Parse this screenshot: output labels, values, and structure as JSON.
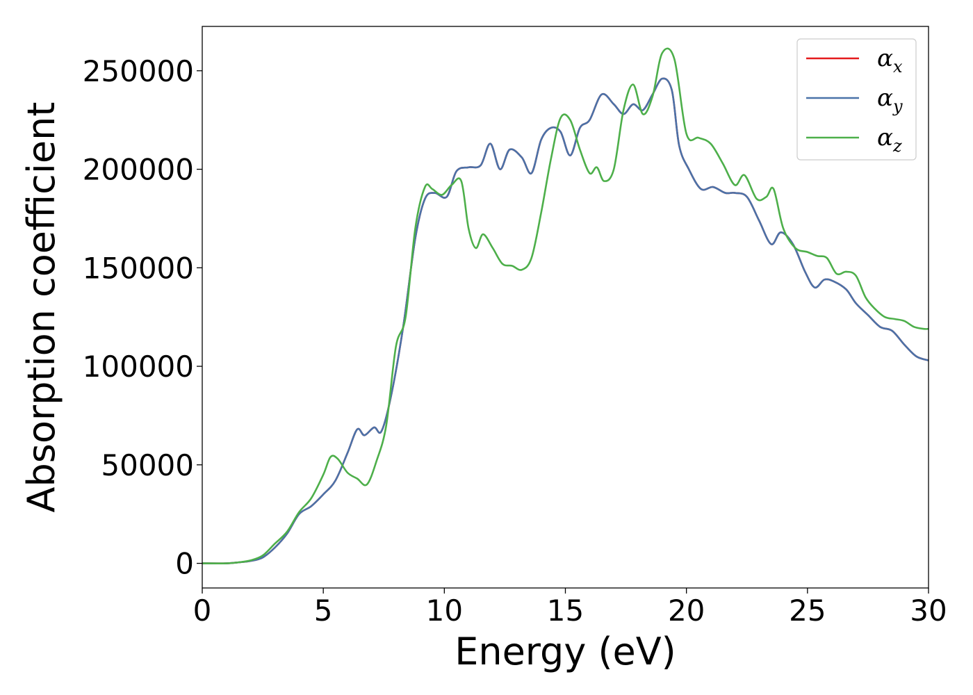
{
  "chart_data": {
    "type": "line",
    "xlabel": "Energy (eV)",
    "ylabel": "Absorption coefficient",
    "xlim": [
      0,
      30
    ],
    "ylim": [
      -12500,
      272500
    ],
    "xticks": [
      0,
      5,
      10,
      15,
      20,
      25,
      30
    ],
    "yticks": [
      0,
      50000,
      100000,
      150000,
      200000,
      250000
    ],
    "xtick_labels": [
      "0",
      "5",
      "10",
      "15",
      "20",
      "25",
      "30"
    ],
    "ytick_labels": [
      "0",
      "50000",
      "100000",
      "150000",
      "200000",
      "250000"
    ],
    "grid": false,
    "legend_position": "top-right",
    "series": [
      {
        "name": "αx",
        "symbol": "α",
        "subscript": "x",
        "color": "#e41a1c",
        "x": [
          0,
          1,
          1.5,
          2,
          2.5,
          3,
          3.5,
          4,
          4.5,
          5,
          5.5,
          6,
          6.4,
          6.7,
          7.1,
          7.4,
          7.8,
          8.3,
          8.8,
          9.2,
          9.6,
          10.1,
          10.5,
          11,
          11.5,
          11.9,
          12.3,
          12.7,
          13.2,
          13.6,
          14,
          14.4,
          14.8,
          15.2,
          15.6,
          16,
          16.5,
          17,
          17.4,
          17.8,
          18.2,
          18.6,
          19,
          19.4,
          19.7,
          20.1,
          20.6,
          21.1,
          21.6,
          22,
          22.5,
          23,
          23.5,
          23.9,
          24.4,
          24.9,
          25.3,
          25.7,
          26.1,
          26.6,
          27,
          27.5,
          28,
          28.5,
          29,
          29.5,
          30
        ],
        "y": [
          0,
          0,
          500,
          1200,
          3000,
          8000,
          15000,
          25000,
          29000,
          35000,
          42000,
          56000,
          68000,
          65000,
          69000,
          67000,
          85000,
          120000,
          165000,
          185000,
          188000,
          186000,
          199000,
          201000,
          202000,
          213000,
          200000,
          210000,
          206000,
          198000,
          215000,
          221000,
          219000,
          207000,
          221000,
          225000,
          238000,
          233000,
          228000,
          233000,
          230000,
          238000,
          246000,
          240000,
          212000,
          200000,
          190000,
          191000,
          188000,
          188000,
          186000,
          174000,
          162000,
          168000,
          162000,
          148000,
          140000,
          144000,
          143000,
          139000,
          132000,
          126000,
          120000,
          118000,
          111000,
          105000,
          103000
        ]
      },
      {
        "name": "αy",
        "symbol": "α",
        "subscript": "y",
        "color": "#4a72a8",
        "x": [
          0,
          1,
          1.5,
          2,
          2.5,
          3,
          3.5,
          4,
          4.5,
          5,
          5.5,
          6,
          6.4,
          6.7,
          7.1,
          7.4,
          7.8,
          8.3,
          8.8,
          9.2,
          9.6,
          10.1,
          10.5,
          11,
          11.5,
          11.9,
          12.3,
          12.7,
          13.2,
          13.6,
          14,
          14.4,
          14.8,
          15.2,
          15.6,
          16,
          16.5,
          17,
          17.4,
          17.8,
          18.2,
          18.6,
          19,
          19.4,
          19.7,
          20.1,
          20.6,
          21.1,
          21.6,
          22,
          22.5,
          23,
          23.5,
          23.9,
          24.4,
          24.9,
          25.3,
          25.7,
          26.1,
          26.6,
          27,
          27.5,
          28,
          28.5,
          29,
          29.5,
          30
        ],
        "y": [
          0,
          0,
          500,
          1200,
          3000,
          8000,
          15000,
          25000,
          29000,
          35000,
          42000,
          56000,
          68000,
          65000,
          69000,
          67000,
          85000,
          120000,
          165000,
          185000,
          188000,
          186000,
          199000,
          201000,
          202000,
          213000,
          200000,
          210000,
          206000,
          198000,
          215000,
          221000,
          219000,
          207000,
          221000,
          225000,
          238000,
          233000,
          228000,
          233000,
          230000,
          238000,
          246000,
          240000,
          212000,
          200000,
          190000,
          191000,
          188000,
          188000,
          186000,
          174000,
          162000,
          168000,
          162000,
          148000,
          140000,
          144000,
          143000,
          139000,
          132000,
          126000,
          120000,
          118000,
          111000,
          105000,
          103000
        ]
      },
      {
        "name": "αz",
        "symbol": "α",
        "subscript": "z",
        "color": "#4daf4a",
        "x": [
          0,
          1,
          1.5,
          2,
          2.5,
          3,
          3.5,
          4,
          4.5,
          5,
          5.3,
          5.6,
          6,
          6.4,
          6.8,
          7.2,
          7.6,
          8,
          8.4,
          8.8,
          9.2,
          9.5,
          9.9,
          10.3,
          10.7,
          11,
          11.3,
          11.6,
          12,
          12.4,
          12.8,
          13.2,
          13.6,
          14,
          14.4,
          14.8,
          15.2,
          15.6,
          16,
          16.3,
          16.6,
          17,
          17.4,
          17.8,
          18.2,
          18.6,
          19,
          19.5,
          20,
          20.5,
          21,
          21.5,
          22,
          22.4,
          22.9,
          23.3,
          23.6,
          24,
          24.5,
          25,
          25.4,
          25.8,
          26.2,
          26.6,
          27,
          27.4,
          27.8,
          28.2,
          28.6,
          29,
          29.4,
          29.8,
          30
        ],
        "y": [
          0,
          0,
          500,
          1500,
          4000,
          10000,
          16000,
          26000,
          33000,
          45000,
          54000,
          53000,
          46000,
          43000,
          40000,
          52000,
          70000,
          110000,
          125000,
          170000,
          191000,
          190000,
          187000,
          192000,
          194000,
          170000,
          160000,
          167000,
          160000,
          152000,
          151000,
          149000,
          155000,
          178000,
          205000,
          226000,
          225000,
          210000,
          198000,
          201000,
          194000,
          200000,
          230000,
          243000,
          228000,
          237000,
          259000,
          256000,
          218000,
          216000,
          213000,
          203000,
          192000,
          197000,
          185000,
          186000,
          190000,
          170000,
          160000,
          158000,
          156000,
          155000,
          147000,
          148000,
          146000,
          135000,
          129000,
          125000,
          124000,
          123000,
          120000,
          119000,
          119000
        ]
      }
    ]
  }
}
